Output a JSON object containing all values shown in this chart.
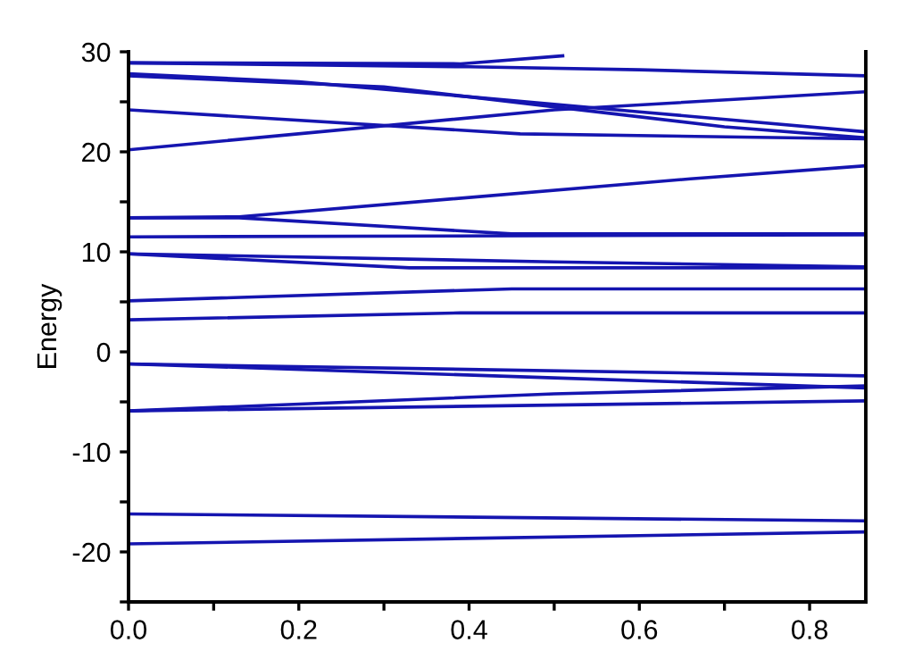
{
  "chart_data": {
    "type": "line",
    "ylabel": "Energy",
    "xlim": [
      0,
      0.866
    ],
    "ylim": [
      -25,
      30
    ],
    "xticks": [
      {
        "value": 0,
        "label": "0.0"
      },
      {
        "value": 0.1,
        "label": null
      },
      {
        "value": 0.2,
        "label": "0.2"
      },
      {
        "value": 0.3,
        "label": null
      },
      {
        "value": 0.4,
        "label": "0.4"
      },
      {
        "value": 0.5,
        "label": null
      },
      {
        "value": 0.6,
        "label": "0.6"
      },
      {
        "value": 0.7,
        "label": null
      },
      {
        "value": 0.8,
        "label": "0.8"
      }
    ],
    "yticks": [
      {
        "value": -25,
        "label": null
      },
      -20,
      {
        "value": -15,
        "label": null
      },
      -10,
      {
        "value": -5,
        "label": null
      },
      0,
      {
        "value": 5,
        "label": null
      },
      10,
      {
        "value": 15,
        "label": null
      },
      20,
      {
        "value": 25,
        "label": null
      },
      30
    ],
    "grid": false,
    "legend": false,
    "marker": "none",
    "line_style": "solid",
    "series": [
      {
        "color": "#1515b0",
        "x": [
          0,
          0.39,
          0.51
        ],
        "values": [
          28.9,
          28.8,
          29.6
        ]
      },
      {
        "color": "#1515b0",
        "x": [
          0,
          0.4,
          0.6,
          0.866
        ],
        "values": [
          28.9,
          28.5,
          28.2,
          27.6
        ]
      },
      {
        "color": "#1515b0",
        "x": [
          0,
          0.2,
          0.4,
          0.6,
          0.866
        ],
        "values": [
          27.8,
          27.0,
          25.5,
          24.0,
          22.0
        ]
      },
      {
        "color": "#1515b0",
        "x": [
          0,
          0.3,
          0.5,
          0.7,
          0.866
        ],
        "values": [
          27.6,
          26.5,
          24.5,
          22.5,
          21.4
        ]
      },
      {
        "color": "#1515b0",
        "x": [
          0,
          0.46,
          0.866
        ],
        "values": [
          24.2,
          21.8,
          21.3
        ]
      },
      {
        "color": "#1515b0",
        "x": [
          0,
          0.5,
          0.866
        ],
        "values": [
          20.2,
          24.2,
          26.0
        ]
      },
      {
        "color": "#1515b0",
        "x": [
          0,
          0.13,
          0.66,
          0.866
        ],
        "values": [
          13.4,
          13.5,
          17.3,
          18.6
        ]
      },
      {
        "color": "#1515b0",
        "x": [
          0,
          0.13,
          0.45,
          0.866
        ],
        "values": [
          13.4,
          13.4,
          11.8,
          11.8
        ]
      },
      {
        "color": "#1515b0",
        "x": [
          0,
          0.866
        ],
        "values": [
          11.5,
          11.7
        ]
      },
      {
        "color": "#1515b0",
        "x": [
          0,
          0.33,
          0.866
        ],
        "values": [
          9.8,
          8.4,
          8.4
        ]
      },
      {
        "color": "#1515b0",
        "x": [
          0,
          0.5,
          0.866
        ],
        "values": [
          9.8,
          9.0,
          8.5
        ]
      },
      {
        "color": "#1515b0",
        "x": [
          0,
          0.45,
          0.866
        ],
        "values": [
          5.1,
          6.3,
          6.3
        ]
      },
      {
        "color": "#1515b0",
        "x": [
          0,
          0.39,
          0.866
        ],
        "values": [
          3.2,
          3.9,
          3.9
        ]
      },
      {
        "color": "#1515b0",
        "x": [
          0,
          0.866
        ],
        "values": [
          -1.2,
          -2.4
        ]
      },
      {
        "color": "#1515b0",
        "x": [
          0,
          0.5,
          0.866
        ],
        "values": [
          -1.2,
          -2.6,
          -3.6
        ]
      },
      {
        "color": "#1515b0",
        "x": [
          0,
          0.5,
          0.866
        ],
        "values": [
          -5.9,
          -4.2,
          -3.4
        ]
      },
      {
        "color": "#1515b0",
        "x": [
          0,
          0.866
        ],
        "values": [
          -5.9,
          -4.9
        ]
      },
      {
        "color": "#1515b0",
        "x": [
          0,
          0.866
        ],
        "values": [
          -16.2,
          -16.9
        ]
      },
      {
        "color": "#1515b0",
        "x": [
          0,
          0.866
        ],
        "values": [
          -19.2,
          -18.0
        ]
      }
    ]
  }
}
